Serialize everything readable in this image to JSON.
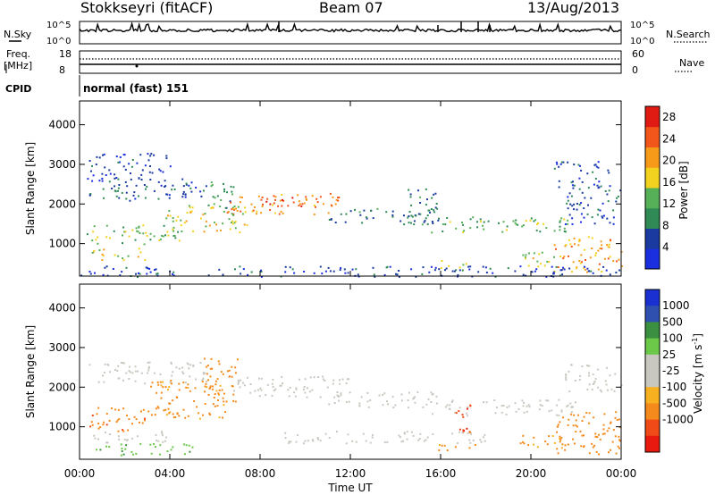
{
  "header": {
    "station": "Stokkseyri (fitACF)",
    "beam": "Beam 07",
    "date": "13/Aug/2013"
  },
  "panels": {
    "nsky_label": "N.Sky",
    "nsearch_label": "N.Search",
    "freq_label_1": "Freq.",
    "freq_label_2": "[MHz]",
    "nave_label": "Nave",
    "cpid_label": "CPID",
    "cpid_value": "normal (fast) 151",
    "nsky_ticks": [
      "10^5",
      "10^0"
    ],
    "nsearch_ticks": [
      "10^5",
      "10^0"
    ],
    "freq_ticks": [
      "18",
      "8"
    ],
    "nave_ticks": [
      "60",
      "0"
    ]
  },
  "colors": {
    "power_scale": [
      "#1a2fe0",
      "#1a3aa0",
      "#2f8a55",
      "#55b058",
      "#f2d21e",
      "#f79a1a",
      "#f2561a",
      "#e01b14"
    ],
    "velocity_scale": [
      "#e81a10",
      "#f04a18",
      "#f58a1c",
      "#f7b020",
      "#c8c8c0",
      "#c8c8c0",
      "#6cc848",
      "#3a9040",
      "#3050b0",
      "#1a30d0"
    ],
    "ground_scatter": "#c8c8c0"
  },
  "chart_data": [
    {
      "type": "heatmap",
      "title": "Power",
      "xlabel": "Time UT",
      "ylabel": "Slant Range [km]",
      "x_ticks": [
        "00:00",
        "04:00",
        "08:00",
        "12:00",
        "16:00",
        "20:00",
        "00:00"
      ],
      "x_range_hours": [
        0,
        24
      ],
      "y_ticks": [
        1000,
        2000,
        3000,
        4000
      ],
      "ylim": [
        180,
        4600
      ],
      "colorbar": {
        "label": "Power [dB]",
        "ticks": [
          4,
          8,
          12,
          16,
          20,
          24,
          28
        ],
        "range": [
          0,
          30
        ]
      },
      "regions": [
        {
          "t": [
            0.4,
            5.6
          ],
          "r": [
            2100,
            2650
          ],
          "level": 6
        },
        {
          "t": [
            5.4,
            6.8
          ],
          "r": [
            1900,
            2600
          ],
          "level": 10
        },
        {
          "t": [
            6.5,
            11.5
          ],
          "r": [
            1750,
            2300
          ],
          "level": 22
        },
        {
          "t": [
            8.0,
            10.0
          ],
          "r": [
            1900,
            2200
          ],
          "level": 26
        },
        {
          "t": [
            11.0,
            15.5
          ],
          "r": [
            1500,
            1900
          ],
          "level": 8
        },
        {
          "t": [
            15.5,
            22.0
          ],
          "r": [
            1300,
            1700
          ],
          "level": 12
        },
        {
          "t": [
            21.5,
            24.0
          ],
          "r": [
            1500,
            2400
          ],
          "level": 6
        },
        {
          "t": [
            0.3,
            4.5
          ],
          "r": [
            1000,
            1500
          ],
          "level": 14
        },
        {
          "t": [
            3.8,
            7.5
          ],
          "r": [
            1300,
            2000
          ],
          "level": 16
        },
        {
          "t": [
            0.5,
            3.0
          ],
          "r": [
            600,
            900
          ],
          "level": 18
        },
        {
          "t": [
            15.8,
            17.2
          ],
          "r": [
            400,
            600
          ],
          "level": 14
        },
        {
          "t": [
            19.5,
            21.5
          ],
          "r": [
            400,
            800
          ],
          "level": 16
        },
        {
          "t": [
            21.0,
            24.0
          ],
          "r": [
            300,
            1200
          ],
          "level": 20
        },
        {
          "t": [
            0.0,
            24.0
          ],
          "r": [
            180,
            450
          ],
          "level": 5
        },
        {
          "t": [
            14.5,
            16.0
          ],
          "r": [
            1500,
            2400
          ],
          "level": 8
        },
        {
          "t": [
            0.3,
            4.0
          ],
          "r": [
            2600,
            3300
          ],
          "level": 4
        },
        {
          "t": [
            21.0,
            23.5
          ],
          "r": [
            2400,
            3100
          ],
          "level": 5
        }
      ]
    },
    {
      "type": "heatmap",
      "title": "Velocity",
      "xlabel": "Time UT",
      "ylabel": "Slant Range [km]",
      "x_ticks": [
        "00:00",
        "04:00",
        "08:00",
        "12:00",
        "16:00",
        "20:00",
        "00:00"
      ],
      "x_range_hours": [
        0,
        24
      ],
      "y_ticks": [
        1000,
        2000,
        3000,
        4000
      ],
      "ylim": [
        180,
        4600
      ],
      "colorbar": {
        "label": "Velocity [m s^-1]",
        "ticks": [
          "1000",
          "500",
          "100",
          "25",
          "-25",
          "-100",
          "-500",
          "-1000"
        ]
      },
      "regions": [
        {
          "t": [
            0.4,
            5.6
          ],
          "r": [
            2100,
            2650
          ],
          "level": "ground"
        },
        {
          "t": [
            6.5,
            12.0
          ],
          "r": [
            1750,
            2300
          ],
          "level": "ground"
        },
        {
          "t": [
            11.0,
            16.0
          ],
          "r": [
            1500,
            1900
          ],
          "level": "ground"
        },
        {
          "t": [
            15.5,
            22.0
          ],
          "r": [
            1300,
            1700
          ],
          "level": "ground"
        },
        {
          "t": [
            21.5,
            24.0
          ],
          "r": [
            1900,
            2600
          ],
          "level": "ground"
        },
        {
          "t": [
            0.3,
            3.0
          ],
          "r": [
            900,
            1500
          ],
          "level": -400
        },
        {
          "t": [
            3.0,
            6.5
          ],
          "r": [
            1200,
            2200
          ],
          "level": -150
        },
        {
          "t": [
            0.5,
            4.0
          ],
          "r": [
            600,
            900
          ],
          "level": "ground"
        },
        {
          "t": [
            0.5,
            5.0
          ],
          "r": [
            300,
            600
          ],
          "level": 80
        },
        {
          "t": [
            16.5,
            17.3
          ],
          "r": [
            800,
            1600
          ],
          "level": -900
        },
        {
          "t": [
            15.8,
            17.5
          ],
          "r": [
            400,
            600
          ],
          "level": -200
        },
        {
          "t": [
            19.5,
            21.5
          ],
          "r": [
            400,
            800
          ],
          "level": -150
        },
        {
          "t": [
            21.0,
            24.0
          ],
          "r": [
            300,
            1400
          ],
          "level": -300
        },
        {
          "t": [
            5.5,
            7.0
          ],
          "r": [
            1600,
            2800
          ],
          "level": -250
        },
        {
          "t": [
            9.0,
            18.0
          ],
          "r": [
            600,
            900
          ],
          "level": "ground"
        }
      ]
    }
  ]
}
